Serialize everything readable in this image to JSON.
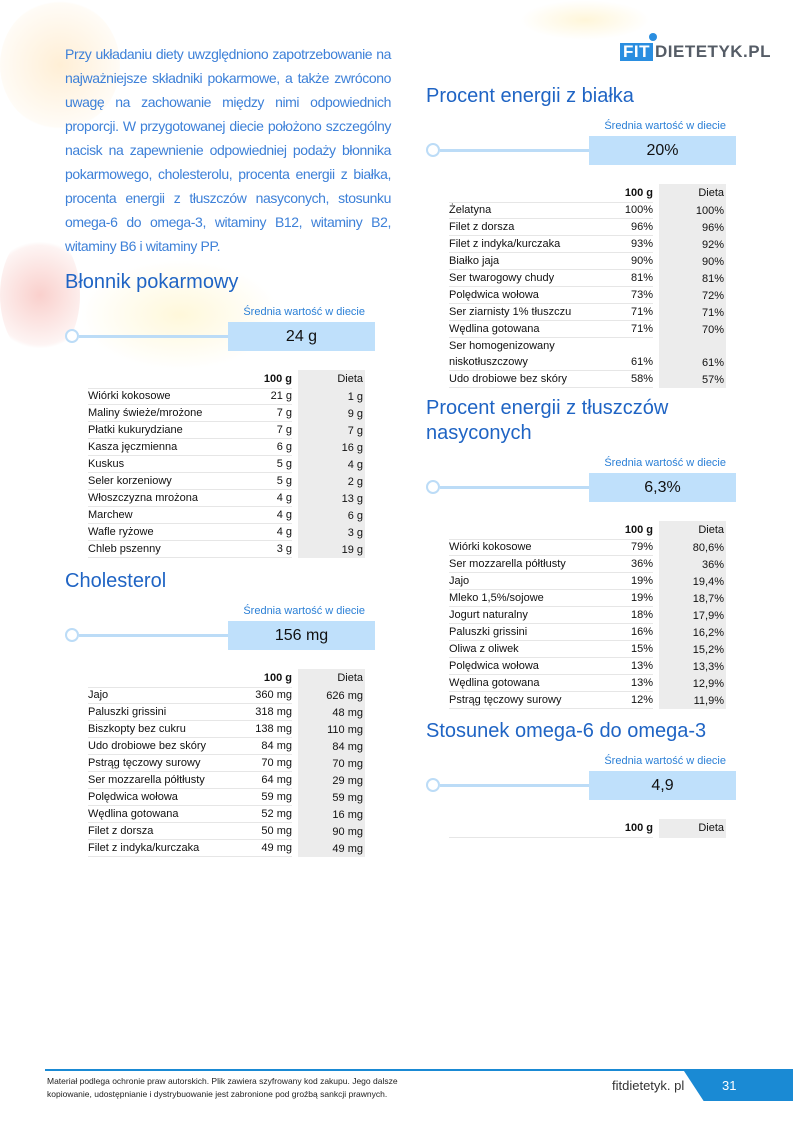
{
  "logo": {
    "fit": "FIT",
    "rest": "DIETETYK.PL"
  },
  "intro": "Przy układaniu diety uwzględniono zapotrzebowanie na najważniejsze składniki pokarmowe, a także zwrócono uwagę na zachowanie między nimi odpowiednich proporcji. W przygotowanej diecie położono szczególny nacisk na zapewnienie odpowiedniej podaży błonnika pokarmowego, cholesterolu, procenta energii z białka, procenta energii z tłuszczów nasyconych, stosunku omega-6 do omega-3, witaminy B12, witaminy B2, witaminy B6 i witaminy PP.",
  "avg_label": "Średnia wartość w diecie",
  "col_100g": "100 g",
  "col_dieta": "Dieta",
  "sections": [
    {
      "id": "blonnik",
      "title": "Błonnik pokarmowy",
      "value": "24 g",
      "rows": [
        [
          "Wiórki kokosowe",
          "21 g",
          "1 g"
        ],
        [
          "Maliny świeże/mrożone",
          "7 g",
          "9 g"
        ],
        [
          "Płatki kukurydziane",
          "7 g",
          "7 g"
        ],
        [
          "Kasza jęczmienna",
          "6 g",
          "16 g"
        ],
        [
          "Kuskus",
          "5 g",
          "4 g"
        ],
        [
          "Seler korzeniowy",
          "5 g",
          "2 g"
        ],
        [
          "Włoszczyzna mrożona",
          "4 g",
          "13 g"
        ],
        [
          "Marchew",
          "4 g",
          "6 g"
        ],
        [
          "Wafle ryżowe",
          "4 g",
          "3 g"
        ],
        [
          "Chleb pszenny",
          "3 g",
          "19 g"
        ]
      ]
    },
    {
      "id": "cholesterol",
      "title": "Cholesterol",
      "value": "156 mg",
      "rows": [
        [
          "Jajo",
          "360 mg",
          "626 mg"
        ],
        [
          "Paluszki grissini",
          "318 mg",
          "48 mg"
        ],
        [
          "Biszkopty bez cukru",
          "138 mg",
          "110 mg"
        ],
        [
          "Udo drobiowe bez skóry",
          "84 mg",
          "84 mg"
        ],
        [
          "Pstrąg tęczowy surowy",
          "70 mg",
          "70 mg"
        ],
        [
          "Ser mozzarella półtłusty",
          "64 mg",
          "29 mg"
        ],
        [
          "Polędwica wołowa",
          "59 mg",
          "59 mg"
        ],
        [
          "Wędlina gotowana",
          "52 mg",
          "16 mg"
        ],
        [
          "Filet z dorsza",
          "50 mg",
          "90 mg"
        ],
        [
          "Filet z indyka/kurczaka",
          "49 mg",
          "49 mg"
        ]
      ]
    },
    {
      "id": "bialko",
      "title": "Procent energii z białka",
      "value": "20%",
      "rows": [
        [
          "Żelatyna",
          "100%",
          "100%"
        ],
        [
          "Filet z dorsza",
          "96%",
          "96%"
        ],
        [
          "Filet z indyka/kurczaka",
          "93%",
          "92%"
        ],
        [
          "Białko jaja",
          "90%",
          "90%"
        ],
        [
          "Ser twarogowy chudy",
          "81%",
          "81%"
        ],
        [
          "Polędwica wołowa",
          "73%",
          "72%"
        ],
        [
          "Ser ziarnisty 1% tłuszczu",
          "71%",
          "71%"
        ],
        [
          "Wędlina gotowana",
          "71%",
          "70%"
        ],
        [
          "Ser homogenizowany niskotłuszczowy",
          "61%",
          "61%"
        ],
        [
          "Udo drobiowe bez skóry",
          "58%",
          "57%"
        ]
      ]
    },
    {
      "id": "tluszcze",
      "title": "Procent energii z tłuszczów nasyconych",
      "value": "6,3%",
      "rows": [
        [
          "Wiórki kokosowe",
          "79%",
          "80,6%"
        ],
        [
          "Ser mozzarella półtłusty",
          "36%",
          "36%"
        ],
        [
          "Jajo",
          "19%",
          "19,4%"
        ],
        [
          "Mleko 1,5%/sojowe",
          "19%",
          "18,7%"
        ],
        [
          "Jogurt naturalny",
          "18%",
          "17,9%"
        ],
        [
          "Paluszki grissini",
          "16%",
          "16,2%"
        ],
        [
          "Oliwa z oliwek",
          "15%",
          "15,2%"
        ],
        [
          "Polędwica wołowa",
          "13%",
          "13,3%"
        ],
        [
          "Wędlina gotowana",
          "13%",
          "12,9%"
        ],
        [
          "Pstrąg tęczowy surowy",
          "12%",
          "11,9%"
        ]
      ]
    },
    {
      "id": "omega",
      "title": "Stosunek omega-6 do omega-3",
      "value": "4,9",
      "rows": []
    }
  ],
  "footer": {
    "notice": "Materiał podlega ochronie praw autorskich. Plik zawiera szyfrowany kod zakupu. Jego dalsze kopiowanie, udostępnianie i dystrybuowanie jest zabronione pod groźbą sankcji prawnych.",
    "site": "fitdietetyk. pl",
    "page": "31"
  },
  "colors": {
    "accent": "#1a8ad4",
    "heading": "#1f64c4",
    "value_box": "#bfe0fb",
    "dieta_col": "#ececec"
  }
}
